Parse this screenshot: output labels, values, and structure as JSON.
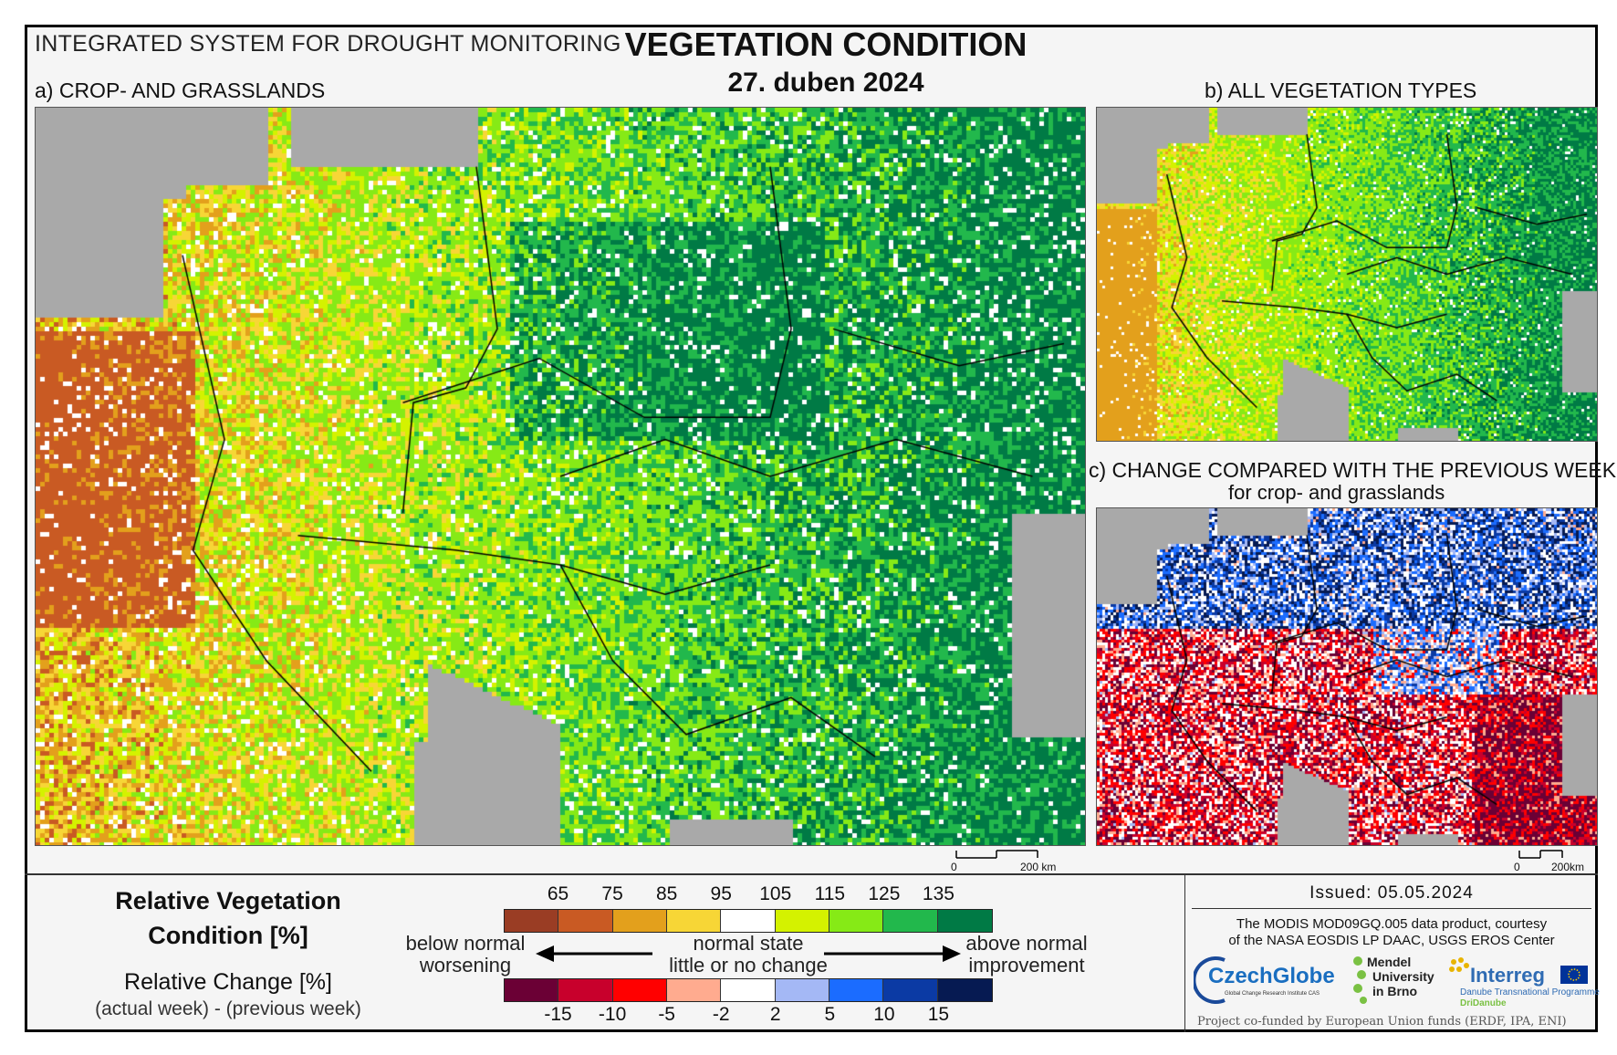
{
  "header": {
    "system_title": "INTEGRATED SYSTEM FOR DROUGHT MONITORING",
    "main_title": "VEGETATION CONDITION",
    "date": "27. duben 2024"
  },
  "panels": {
    "a_title": "a) CROP- AND GRASSLANDS",
    "b_title": "b) ALL VEGETATION TYPES",
    "c_title": "c) CHANGE COMPARED WITH THE PREVIOUS WEEK",
    "c_subtitle": "for crop- and grasslands"
  },
  "scalebars": {
    "a": {
      "start": "0",
      "end": "200 km"
    },
    "c": {
      "start": "0",
      "end": "200km"
    }
  },
  "legend": {
    "rvc_title_line1": "Relative Vegetation",
    "rvc_title_line2": "Condition [%]",
    "rc_title": "Relative Change [%]",
    "rc_subtitle": "(actual week) - (previous week)",
    "rvc_ticks": [
      "65",
      "75",
      "85",
      "95",
      "105",
      "115",
      "125",
      "135"
    ],
    "rvc_colors": [
      "#9a3d24",
      "#c95a23",
      "#e3a01c",
      "#f7d636",
      "#ffffff",
      "#d4f200",
      "#86ea16",
      "#22b84c",
      "#007a45"
    ],
    "rc_ticks": [
      "-15",
      "-10",
      "-5",
      "-2",
      "2",
      "5",
      "10",
      "15"
    ],
    "rc_colors": [
      "#6b0035",
      "#c8002c",
      "#ff0000",
      "#ffab8f",
      "#ffffff",
      "#a4b8f5",
      "#1b6cff",
      "#0b3aa4",
      "#061a52"
    ],
    "left_note_line1": "below normal",
    "left_note_line2": "worsening",
    "center_note_line1": "normal state",
    "center_note_line2": "little or no change",
    "right_note_line1": "above normal",
    "right_note_line2": "improvement"
  },
  "footer": {
    "issued": "Issued: 05.05.2024",
    "credit_line1": "The MODIS MOD09GQ.005 data product, courtesy",
    "credit_line2": "of the NASA EOSDIS LP DAAC, USGS EROS Center",
    "czechglobe": "CzechGlobe",
    "czechglobe_sub": "Global Change Research Institute CAS",
    "mendel_line1": "Mendel",
    "mendel_line2": "University",
    "mendel_line3": "in Brno",
    "interreg": "Interreg",
    "interreg_sub": "Danube Transnational Programme",
    "interreg_sub2": "DriDanube",
    "cofunded": "Project co-funded by European Union funds (ERDF, IPA, ENI)"
  },
  "colors": {
    "sea": "#a9a9a9",
    "border": "#000000"
  }
}
